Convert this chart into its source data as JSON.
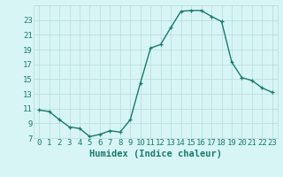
{
  "x": [
    0,
    1,
    2,
    3,
    4,
    5,
    6,
    7,
    8,
    9,
    10,
    11,
    12,
    13,
    14,
    15,
    16,
    17,
    18,
    19,
    20,
    21,
    22,
    23
  ],
  "y": [
    10.8,
    10.6,
    9.5,
    8.5,
    8.3,
    7.2,
    7.5,
    8.0,
    7.8,
    9.5,
    14.5,
    19.2,
    19.7,
    22.0,
    24.2,
    24.3,
    24.3,
    23.5,
    22.8,
    17.3,
    15.2,
    14.8,
    13.8,
    13.2
  ],
  "xlim": [
    -0.5,
    23.5
  ],
  "ylim": [
    7,
    25
  ],
  "yticks": [
    7,
    9,
    11,
    13,
    15,
    17,
    19,
    21,
    23
  ],
  "xticks": [
    0,
    1,
    2,
    3,
    4,
    5,
    6,
    7,
    8,
    9,
    10,
    11,
    12,
    13,
    14,
    15,
    16,
    17,
    18,
    19,
    20,
    21,
    22,
    23
  ],
  "xlabel": "Humidex (Indice chaleur)",
  "line_color": "#1a7a6e",
  "marker": "+",
  "bg_color": "#d8f5f5",
  "grid_color": "#b8dada",
  "xlabel_fontsize": 7.5,
  "tick_fontsize": 6.5,
  "linewidth": 1.0,
  "markersize": 3.5,
  "markeredgewidth": 0.9
}
